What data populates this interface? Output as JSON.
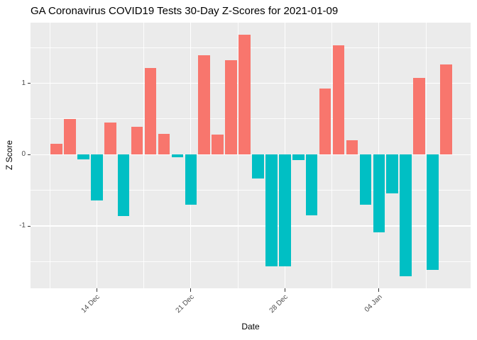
{
  "chart_data": {
    "type": "bar",
    "title": "GA Coronavirus COVID19 Tests 30-Day Z-Scores for 2021-01-09",
    "xlabel": "Date",
    "ylabel": "Z Score",
    "x": [
      "2020-12-11",
      "2020-12-12",
      "2020-12-13",
      "2020-12-14",
      "2020-12-15",
      "2020-12-16",
      "2020-12-17",
      "2020-12-18",
      "2020-12-19",
      "2020-12-20",
      "2020-12-21",
      "2020-12-22",
      "2020-12-23",
      "2020-12-24",
      "2020-12-25",
      "2020-12-26",
      "2020-12-27",
      "2020-12-28",
      "2020-12-29",
      "2020-12-30",
      "2020-12-31",
      "2021-01-01",
      "2021-01-02",
      "2021-01-03",
      "2021-01-04",
      "2021-01-05",
      "2021-01-06",
      "2021-01-07",
      "2021-01-08",
      "2021-01-09"
    ],
    "values": [
      0.15,
      0.5,
      -0.07,
      -0.64,
      0.45,
      -0.86,
      0.39,
      1.21,
      0.29,
      -0.04,
      -0.7,
      1.39,
      0.28,
      1.32,
      1.68,
      -0.33,
      -1.57,
      -1.57,
      -0.08,
      -0.85,
      0.93,
      1.53,
      0.2,
      -0.7,
      -1.09,
      -0.54,
      -1.7,
      1.08,
      -1.62,
      1.26
    ],
    "x_tick_labels": [
      "14 Dec",
      "21 Dec",
      "28 Dec",
      "04 Jan"
    ],
    "x_tick_indices": [
      3,
      10,
      17,
      24
    ],
    "y_tick_values": [
      -1,
      0,
      1
    ],
    "y_tick_labels": [
      "-1",
      "0",
      "1"
    ],
    "y_minor_values": [
      -1.5,
      -0.5,
      0.5,
      1.5
    ],
    "x_minor_indices": [
      -0.5,
      6.5,
      13.5,
      20.5,
      27.5
    ],
    "ylim": [
      -1.87,
      1.85
    ],
    "grid": true,
    "legend": "none",
    "colors": {
      "positive": "#F8766D",
      "negative": "#00BFC4",
      "panel_bg": "#EBEBEB",
      "gridline": "#FFFFFF",
      "axis_text": "#4D4D4D",
      "tick_mark": "#333333",
      "title_text": "#000000"
    }
  }
}
